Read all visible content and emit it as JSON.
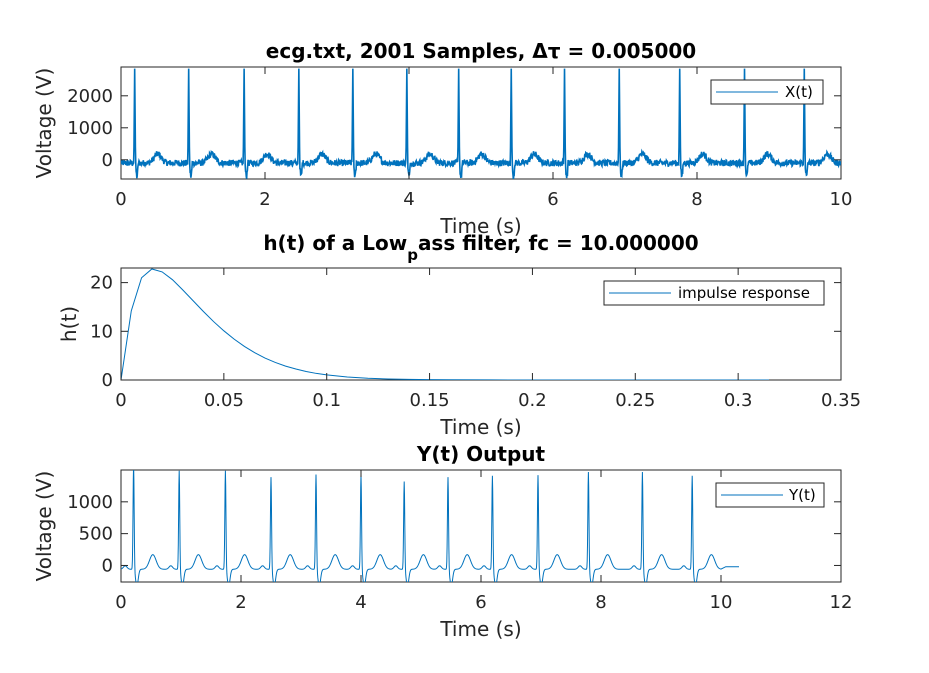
{
  "chart_data": [
    {
      "type": "line",
      "title": "ecg.txt, 2001 Samples, Δτ = 0.005000",
      "xlabel": "Time (s)",
      "ylabel": "Voltage (V)",
      "xlim": [
        0,
        10
      ],
      "ylim": [
        -600,
        2900
      ],
      "xticks": [
        0,
        2,
        4,
        6,
        8,
        10
      ],
      "yticks": [
        0,
        1000,
        2000
      ],
      "grid": false,
      "legend_position": "top-right",
      "series": [
        {
          "name": "X(t)",
          "color": "#0072bd",
          "model": "ecg",
          "sample_step": 0.005,
          "beat_times": [
            0.19,
            0.94,
            1.71,
            2.47,
            3.22,
            3.97,
            4.69,
            5.42,
            6.16,
            6.92,
            7.76,
            8.66,
            9.49
          ],
          "peak_value": 2950,
          "baseline_value": -100,
          "noise_amplitude": 100,
          "t_wave_amplitude": 280
        }
      ]
    },
    {
      "type": "line",
      "title": "h(t) of a Low",
      "title_subscript": "p",
      "title_rest": "ass filter, fc = 10.000000",
      "xlabel": "Time (s)",
      "ylabel": "h(t)",
      "xlim": [
        0,
        0.35
      ],
      "ylim": [
        0,
        23
      ],
      "xticks": [
        0,
        0.05,
        0.1,
        0.15,
        0.2,
        0.25,
        0.3,
        0.35
      ],
      "yticks": [
        0,
        10,
        20
      ],
      "grid": false,
      "legend_position": "top-right",
      "series": [
        {
          "name": "impulse response",
          "color": "#0072bd",
          "x": [
            0,
            0.005,
            0.01,
            0.015,
            0.02,
            0.025,
            0.03,
            0.035,
            0.04,
            0.045,
            0.05,
            0.055,
            0.06,
            0.065,
            0.07,
            0.075,
            0.08,
            0.085,
            0.09,
            0.095,
            0.1,
            0.11,
            0.12,
            0.13,
            0.14,
            0.15,
            0.16,
            0.18,
            0.2,
            0.22,
            0.25,
            0.28,
            0.3,
            0.315
          ],
          "y": [
            0,
            14.2,
            21.0,
            22.8,
            22.2,
            20.6,
            18.5,
            16.3,
            14.1,
            12.0,
            10.1,
            8.4,
            6.9,
            5.6,
            4.5,
            3.6,
            2.85,
            2.25,
            1.75,
            1.35,
            1.05,
            0.62,
            0.36,
            0.21,
            0.12,
            0.07,
            0.04,
            0.015,
            0.005,
            0.002,
            0.0,
            0.0,
            0.0,
            0.0
          ]
        }
      ]
    },
    {
      "type": "line",
      "title": "Y(t) Output",
      "xlabel": "Time (s)",
      "ylabel": "Voltage (V)",
      "xlim": [
        0,
        12
      ],
      "ylim": [
        -260,
        1500
      ],
      "xticks": [
        0,
        2,
        4,
        6,
        8,
        10,
        12
      ],
      "yticks": [
        0,
        500,
        1000
      ],
      "grid": false,
      "legend_position": "top-right",
      "series": [
        {
          "name": "Y(t)",
          "color": "#0072bd",
          "model": "ecg_filtered",
          "sample_step": 0.005,
          "beat_times": [
            0.21,
            0.97,
            1.74,
            2.5,
            3.25,
            4.0,
            4.72,
            5.45,
            6.19,
            6.95,
            7.79,
            8.69,
            9.52
          ],
          "peak_values": [
            1600,
            1500,
            1500,
            1400,
            1440,
            1440,
            1330,
            1400,
            1420,
            1430,
            1480,
            1480,
            1420
          ],
          "baseline_value": -60,
          "t_wave_amplitude": 230,
          "signal_end": 10.0,
          "tail_end": 10.3
        }
      ]
    }
  ]
}
